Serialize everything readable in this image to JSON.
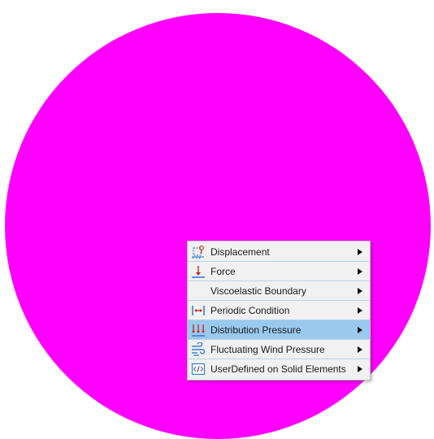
{
  "canvas": {
    "background_color": "#ffffff",
    "shape_color": "#ff00ff"
  },
  "context_menu": {
    "highlight_color": "#99c9ef",
    "items": [
      {
        "label": "Displacement",
        "icon": "displacement-icon",
        "has_submenu": true,
        "highlighted": false
      },
      {
        "label": "Force",
        "icon": "force-icon",
        "has_submenu": true,
        "highlighted": false
      },
      {
        "label": "Viscoelastic Boundary",
        "icon": "none",
        "has_submenu": true,
        "highlighted": false
      },
      {
        "label": "Periodic Condition",
        "icon": "periodic-condition-icon",
        "has_submenu": true,
        "highlighted": false
      },
      {
        "label": "Distribution Pressure",
        "icon": "distribution-pressure-icon",
        "has_submenu": true,
        "highlighted": true
      },
      {
        "label": "Fluctuating Wind Pressure",
        "icon": "wind-pressure-icon",
        "has_submenu": true,
        "highlighted": false
      },
      {
        "label": "UserDefined on Solid Elements",
        "icon": "code-icon",
        "has_submenu": true,
        "highlighted": false
      }
    ]
  }
}
